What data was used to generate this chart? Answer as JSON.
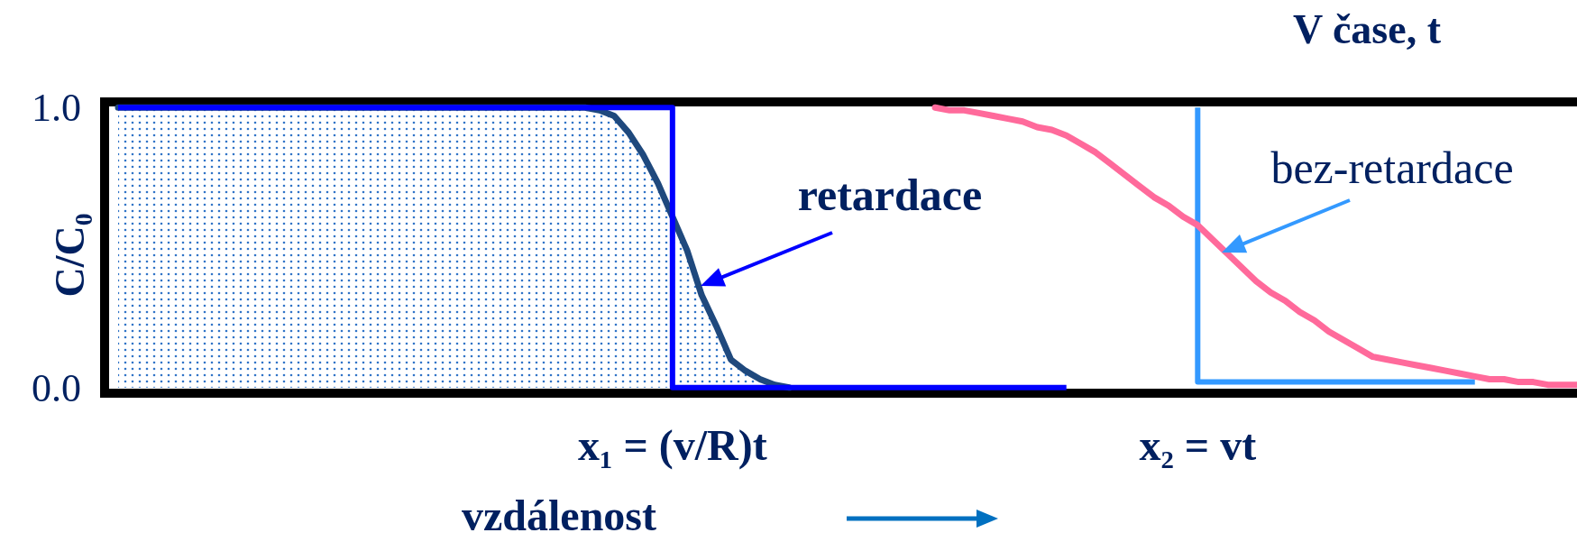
{
  "chart_data": {
    "type": "line",
    "title": "V čase, t",
    "xlabel": "vzdálenost",
    "ylabel": "C/C₀",
    "categories": [
      null,
      null,
      null,
      null,
      null,
      null,
      null,
      null,
      null,
      null,
      null,
      null,
      null,
      null,
      null,
      null,
      null,
      null,
      null,
      null,
      null,
      null,
      null,
      null,
      null,
      null,
      null,
      null,
      null,
      null,
      null,
      null,
      null,
      null,
      null,
      null,
      null,
      null,
      "x₁ = (v/R)t",
      null,
      null,
      null,
      null,
      null,
      null,
      null,
      null,
      null,
      null,
      null,
      null,
      null,
      null,
      null,
      null,
      null,
      null,
      null,
      null,
      null,
      null,
      null,
      null,
      null,
      null,
      null,
      null,
      null,
      null,
      null,
      null,
      null,
      null,
      null,
      "x₂ = vt",
      null,
      null,
      null,
      null,
      null,
      null,
      null,
      null,
      null,
      null,
      null,
      null,
      null,
      null,
      null,
      null,
      null,
      null,
      null,
      null,
      null,
      null,
      null,
      null,
      null,
      null
    ],
    "ylim": [
      -0.02,
      1.02
    ],
    "yticks": [
      {
        "value": 0,
        "label": "0.0"
      },
      {
        "value": 1,
        "label": "1.0"
      }
    ],
    "series": [
      {
        "type": "area",
        "color": "#1f497d",
        "values": [
          1,
          1,
          1,
          1,
          1,
          1,
          1,
          1,
          1,
          1,
          1,
          1,
          1,
          1,
          1,
          1,
          1,
          1,
          1,
          1,
          1,
          1,
          1,
          1,
          1,
          1,
          1,
          1,
          1,
          1,
          1,
          1,
          1,
          0.99,
          0.97,
          0.91,
          0.83,
          0.73,
          0.61,
          0.49,
          0.33,
          0.22,
          0.1,
          0.06,
          0.03,
          0.01,
          0,
          null,
          null,
          null,
          null,
          null,
          null,
          null,
          null,
          null,
          null,
          null,
          null,
          null,
          null,
          null,
          null,
          null,
          null,
          null,
          null,
          null,
          null,
          null,
          null,
          null,
          null,
          null,
          null,
          null,
          null,
          null,
          null,
          null,
          null,
          null,
          null,
          null,
          null,
          null,
          null,
          null,
          null,
          null,
          null,
          null,
          null,
          null,
          null,
          null,
          null,
          null,
          null,
          null,
          null
        ]
      },
      {
        "type": "step",
        "color": "#0000ff",
        "values": [
          1,
          1,
          1,
          1,
          1,
          1,
          1,
          1,
          1,
          1,
          1,
          1,
          1,
          1,
          1,
          1,
          1,
          1,
          1,
          1,
          1,
          1,
          1,
          1,
          1,
          1,
          1,
          1,
          1,
          1,
          1,
          1,
          1,
          1,
          1,
          1,
          1,
          1,
          1,
          0,
          0,
          0,
          0,
          0,
          0,
          0,
          0,
          0,
          0,
          0,
          0,
          0,
          0,
          0,
          0,
          0,
          0,
          0,
          0,
          0,
          0,
          0,
          0,
          0,
          0,
          0,
          null,
          null,
          null,
          null,
          null,
          null,
          null,
          null,
          null,
          null,
          null,
          null,
          null,
          null,
          null,
          null,
          null,
          null,
          null,
          null,
          null,
          null,
          null,
          null,
          null,
          null,
          null,
          null,
          null,
          null,
          null,
          null,
          null,
          null,
          null
        ]
      },
      {
        "type": "step",
        "color": "#3399ff",
        "values": [
          null,
          null,
          null,
          null,
          null,
          null,
          null,
          null,
          null,
          null,
          null,
          null,
          null,
          null,
          null,
          null,
          null,
          null,
          null,
          null,
          null,
          null,
          null,
          null,
          null,
          null,
          null,
          null,
          null,
          null,
          null,
          null,
          null,
          null,
          null,
          null,
          null,
          null,
          null,
          null,
          null,
          null,
          null,
          null,
          null,
          null,
          null,
          null,
          null,
          null,
          null,
          null,
          null,
          null,
          null,
          null,
          null,
          null,
          null,
          null,
          null,
          null,
          null,
          null,
          null,
          null,
          null,
          null,
          null,
          null,
          null,
          null,
          null,
          null,
          1,
          0.02,
          0.02,
          0.02,
          0.02,
          0.02,
          0.02,
          0.02,
          0.02,
          0.02,
          0.02,
          0.02,
          0.02,
          0.02,
          0.02,
          0.02,
          0.02,
          0.02,
          0.02,
          0.02,
          null,
          null,
          null,
          null,
          null,
          null,
          null
        ]
      },
      {
        "color": "#ff6a9b",
        "values": [
          null,
          null,
          null,
          null,
          null,
          null,
          null,
          null,
          null,
          null,
          null,
          null,
          null,
          null,
          null,
          null,
          null,
          null,
          null,
          null,
          null,
          null,
          null,
          null,
          null,
          null,
          null,
          null,
          null,
          null,
          null,
          null,
          null,
          null,
          null,
          null,
          null,
          null,
          null,
          null,
          null,
          null,
          null,
          null,
          null,
          null,
          null,
          null,
          null,
          null,
          null,
          null,
          null,
          null,
          null,
          null,
          1,
          0.99,
          0.99,
          0.98,
          0.97,
          0.96,
          0.95,
          0.93,
          0.92,
          0.9,
          0.87,
          0.84,
          0.8,
          0.76,
          0.72,
          0.68,
          0.65,
          0.61,
          0.58,
          0.53,
          0.48,
          0.43,
          0.38,
          0.34,
          0.31,
          0.27,
          0.24,
          0.2,
          0.17,
          0.14,
          0.11,
          0.1,
          0.09,
          0.08,
          0.07,
          0.06,
          0.05,
          0.04,
          0.03,
          0.03,
          0.02,
          0.02,
          0.01,
          0.01,
          0.01
        ]
      }
    ],
    "annotations": [
      "retardace",
      "bez-retardace"
    ]
  }
}
